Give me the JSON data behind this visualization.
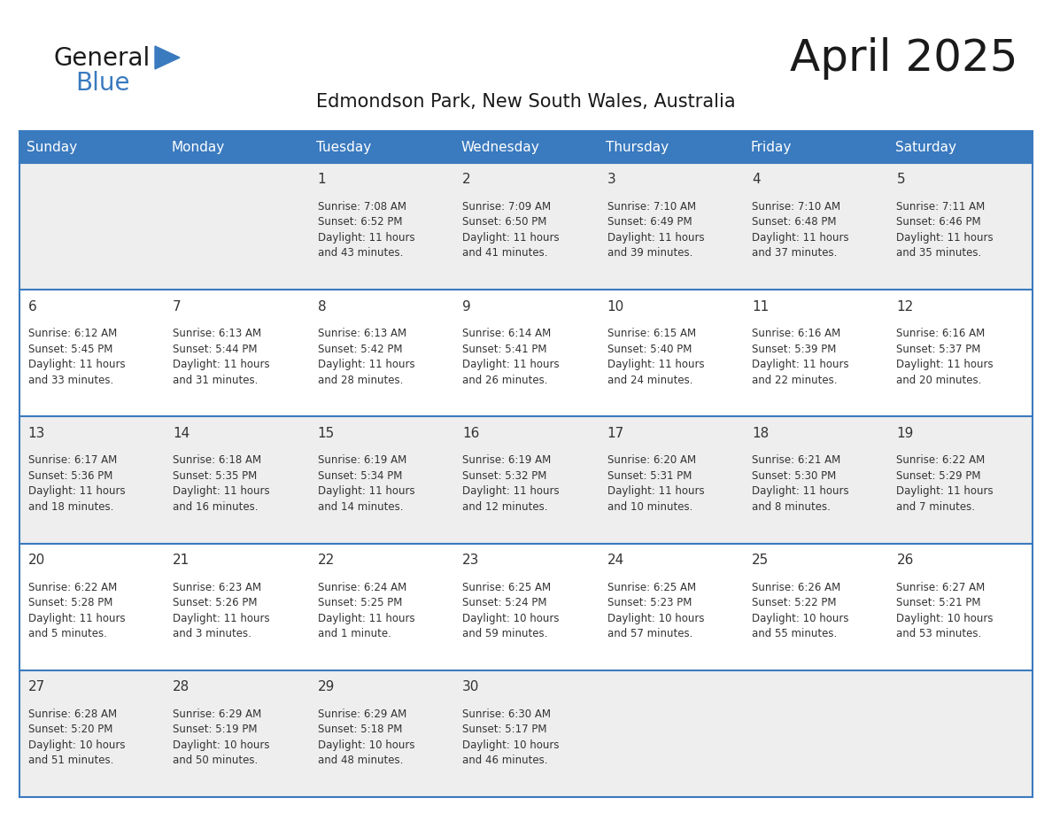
{
  "title": "April 2025",
  "subtitle": "Edmondson Park, New South Wales, Australia",
  "days_of_week": [
    "Sunday",
    "Monday",
    "Tuesday",
    "Wednesday",
    "Thursday",
    "Friday",
    "Saturday"
  ],
  "header_bg": "#3a7abf",
  "header_text": "#ffffff",
  "row_bg_light": "#eeeeee",
  "row_bg_white": "#ffffff",
  "divider_color": "#3a7abf",
  "text_color": "#333333",
  "title_color": "#1a1a1a",
  "subtitle_color": "#1a1a1a",
  "logo_general_color": "#1a1a1a",
  "logo_blue_color": "#3a7abf",
  "logo_triangle_color": "#3a7abf",
  "fig_bg": "#ffffff",
  "calendar": [
    [
      {
        "day": "",
        "info": ""
      },
      {
        "day": "",
        "info": ""
      },
      {
        "day": "1",
        "info": "Sunrise: 7:08 AM\nSunset: 6:52 PM\nDaylight: 11 hours\nand 43 minutes."
      },
      {
        "day": "2",
        "info": "Sunrise: 7:09 AM\nSunset: 6:50 PM\nDaylight: 11 hours\nand 41 minutes."
      },
      {
        "day": "3",
        "info": "Sunrise: 7:10 AM\nSunset: 6:49 PM\nDaylight: 11 hours\nand 39 minutes."
      },
      {
        "day": "4",
        "info": "Sunrise: 7:10 AM\nSunset: 6:48 PM\nDaylight: 11 hours\nand 37 minutes."
      },
      {
        "day": "5",
        "info": "Sunrise: 7:11 AM\nSunset: 6:46 PM\nDaylight: 11 hours\nand 35 minutes."
      }
    ],
    [
      {
        "day": "6",
        "info": "Sunrise: 6:12 AM\nSunset: 5:45 PM\nDaylight: 11 hours\nand 33 minutes."
      },
      {
        "day": "7",
        "info": "Sunrise: 6:13 AM\nSunset: 5:44 PM\nDaylight: 11 hours\nand 31 minutes."
      },
      {
        "day": "8",
        "info": "Sunrise: 6:13 AM\nSunset: 5:42 PM\nDaylight: 11 hours\nand 28 minutes."
      },
      {
        "day": "9",
        "info": "Sunrise: 6:14 AM\nSunset: 5:41 PM\nDaylight: 11 hours\nand 26 minutes."
      },
      {
        "day": "10",
        "info": "Sunrise: 6:15 AM\nSunset: 5:40 PM\nDaylight: 11 hours\nand 24 minutes."
      },
      {
        "day": "11",
        "info": "Sunrise: 6:16 AM\nSunset: 5:39 PM\nDaylight: 11 hours\nand 22 minutes."
      },
      {
        "day": "12",
        "info": "Sunrise: 6:16 AM\nSunset: 5:37 PM\nDaylight: 11 hours\nand 20 minutes."
      }
    ],
    [
      {
        "day": "13",
        "info": "Sunrise: 6:17 AM\nSunset: 5:36 PM\nDaylight: 11 hours\nand 18 minutes."
      },
      {
        "day": "14",
        "info": "Sunrise: 6:18 AM\nSunset: 5:35 PM\nDaylight: 11 hours\nand 16 minutes."
      },
      {
        "day": "15",
        "info": "Sunrise: 6:19 AM\nSunset: 5:34 PM\nDaylight: 11 hours\nand 14 minutes."
      },
      {
        "day": "16",
        "info": "Sunrise: 6:19 AM\nSunset: 5:32 PM\nDaylight: 11 hours\nand 12 minutes."
      },
      {
        "day": "17",
        "info": "Sunrise: 6:20 AM\nSunset: 5:31 PM\nDaylight: 11 hours\nand 10 minutes."
      },
      {
        "day": "18",
        "info": "Sunrise: 6:21 AM\nSunset: 5:30 PM\nDaylight: 11 hours\nand 8 minutes."
      },
      {
        "day": "19",
        "info": "Sunrise: 6:22 AM\nSunset: 5:29 PM\nDaylight: 11 hours\nand 7 minutes."
      }
    ],
    [
      {
        "day": "20",
        "info": "Sunrise: 6:22 AM\nSunset: 5:28 PM\nDaylight: 11 hours\nand 5 minutes."
      },
      {
        "day": "21",
        "info": "Sunrise: 6:23 AM\nSunset: 5:26 PM\nDaylight: 11 hours\nand 3 minutes."
      },
      {
        "day": "22",
        "info": "Sunrise: 6:24 AM\nSunset: 5:25 PM\nDaylight: 11 hours\nand 1 minute."
      },
      {
        "day": "23",
        "info": "Sunrise: 6:25 AM\nSunset: 5:24 PM\nDaylight: 10 hours\nand 59 minutes."
      },
      {
        "day": "24",
        "info": "Sunrise: 6:25 AM\nSunset: 5:23 PM\nDaylight: 10 hours\nand 57 minutes."
      },
      {
        "day": "25",
        "info": "Sunrise: 6:26 AM\nSunset: 5:22 PM\nDaylight: 10 hours\nand 55 minutes."
      },
      {
        "day": "26",
        "info": "Sunrise: 6:27 AM\nSunset: 5:21 PM\nDaylight: 10 hours\nand 53 minutes."
      }
    ],
    [
      {
        "day": "27",
        "info": "Sunrise: 6:28 AM\nSunset: 5:20 PM\nDaylight: 10 hours\nand 51 minutes."
      },
      {
        "day": "28",
        "info": "Sunrise: 6:29 AM\nSunset: 5:19 PM\nDaylight: 10 hours\nand 50 minutes."
      },
      {
        "day": "29",
        "info": "Sunrise: 6:29 AM\nSunset: 5:18 PM\nDaylight: 10 hours\nand 48 minutes."
      },
      {
        "day": "30",
        "info": "Sunrise: 6:30 AM\nSunset: 5:17 PM\nDaylight: 10 hours\nand 46 minutes."
      },
      {
        "day": "",
        "info": ""
      },
      {
        "day": "",
        "info": ""
      },
      {
        "day": "",
        "info": ""
      }
    ]
  ],
  "n_cols": 7,
  "n_rows": 5,
  "cell_font_size": 8.5,
  "day_num_font_size": 11,
  "header_font_size": 11,
  "title_font_size": 36,
  "subtitle_font_size": 15
}
